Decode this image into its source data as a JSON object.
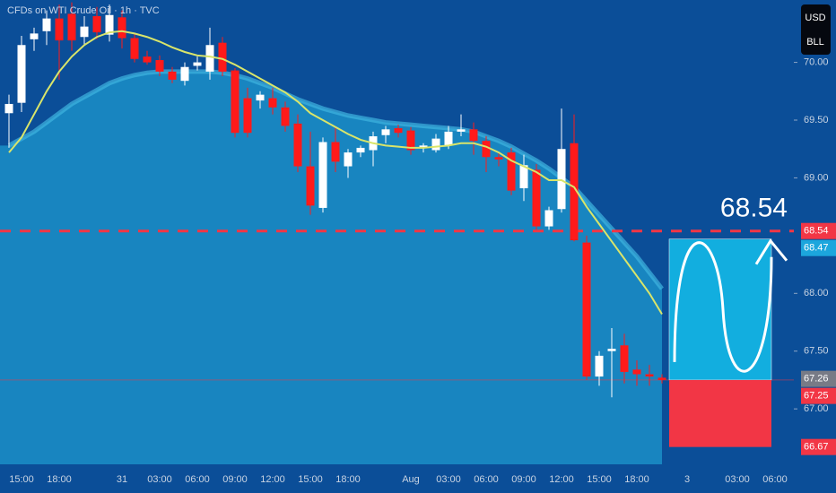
{
  "chart_data": {
    "type": "candlestick",
    "title": "CFDs on WTI Crude Oil · 1h · TVC",
    "currency": [
      "USD",
      "BLL"
    ],
    "categories": [
      null,
      "15:00",
      null,
      null,
      "18:00",
      null,
      null,
      null,
      null,
      "31",
      null,
      null,
      "03:00",
      null,
      null,
      "06:00",
      null,
      null,
      "09:00",
      null,
      null,
      "12:00",
      null,
      null,
      "15:00",
      null,
      null,
      "18:00",
      null,
      null,
      null,
      null,
      "Aug",
      null,
      null,
      "03:00",
      null,
      null,
      "06:00",
      null,
      null,
      "09:00",
      null,
      null,
      "12:00",
      null,
      null,
      "15:00",
      null,
      null,
      "18:00",
      null,
      null,
      null,
      "3",
      null,
      null,
      null,
      "03:00",
      null,
      null,
      "06:00"
    ],
    "open": [
      69.56,
      69.65,
      70.2,
      70.27,
      70.38,
      70.42,
      70.22,
      70.4,
      70.24,
      70.39,
      70.21,
      70.05,
      70.02,
      69.92,
      69.84,
      69.97,
      69.92,
      70.17,
      69.93,
      69.69,
      69.67,
      69.69,
      69.61,
      69.47,
      69.1,
      68.74,
      69.31,
      69.1,
      69.22,
      69.24,
      69.37,
      69.43,
      69.41,
      69.26,
      69.24,
      69.28,
      69.4,
      69.42,
      69.32,
      69.18,
      69.22,
      68.91,
      69.07,
      68.58,
      68.73,
      69.3,
      68.44,
      67.28,
      67.5,
      67.55,
      67.34,
      67.3,
      67.27,
      null,
      null,
      null,
      null,
      null,
      null,
      null,
      null,
      null
    ],
    "high": [
      69.72,
      70.23,
      70.3,
      70.45,
      70.5,
      70.52,
      70.4,
      70.48,
      70.5,
      70.45,
      70.25,
      70.1,
      70.06,
      69.96,
      70.0,
      70.05,
      70.3,
      70.22,
      69.95,
      69.78,
      69.75,
      69.78,
      69.66,
      69.55,
      69.4,
      69.35,
      69.45,
      69.25,
      69.28,
      69.4,
      69.45,
      69.46,
      69.44,
      69.3,
      69.38,
      69.45,
      69.55,
      69.48,
      69.36,
      69.22,
      69.26,
      69.2,
      69.12,
      68.75,
      69.6,
      69.55,
      68.5,
      67.5,
      67.7,
      67.65,
      67.42,
      67.38,
      67.3,
      null,
      null,
      null,
      null,
      null,
      null,
      null,
      null,
      null
    ],
    "low": [
      69.26,
      69.57,
      70.1,
      70.15,
      69.85,
      70.1,
      70.15,
      70.2,
      70.18,
      70.12,
      70.0,
      69.98,
      69.88,
      69.82,
      69.8,
      69.93,
      69.85,
      69.88,
      69.35,
      69.35,
      69.6,
      69.55,
      69.4,
      69.05,
      68.68,
      68.7,
      69.05,
      69.0,
      69.18,
      69.1,
      69.3,
      69.35,
      69.2,
      69.22,
      69.22,
      69.25,
      69.36,
      69.2,
      69.05,
      69.1,
      68.85,
      68.8,
      68.55,
      68.55,
      68.7,
      68.45,
      67.25,
      67.2,
      67.1,
      67.22,
      67.2,
      67.2,
      67.22,
      null,
      null,
      null,
      null,
      null,
      null,
      null,
      null,
      null
    ],
    "close": [
      69.64,
      70.15,
      70.25,
      70.38,
      70.19,
      70.19,
      70.31,
      70.26,
      70.41,
      70.21,
      70.03,
      70.0,
      69.92,
      69.85,
      69.96,
      70.0,
      70.15,
      69.92,
      69.39,
      69.39,
      69.72,
      69.61,
      69.45,
      69.1,
      68.76,
      69.31,
      69.14,
      69.22,
      69.26,
      69.36,
      69.42,
      69.39,
      69.24,
      69.28,
      69.34,
      69.4,
      69.42,
      69.32,
      69.18,
      69.16,
      68.89,
      69.11,
      68.58,
      68.72,
      69.25,
      68.46,
      67.28,
      67.46,
      67.52,
      67.32,
      67.3,
      67.28,
      67.25,
      null,
      null,
      null,
      null,
      null,
      null,
      null,
      null,
      null
    ],
    "up_color": "#ffffff",
    "down_color": "#ff1a1a",
    "ma": {
      "color": "#d9e56a",
      "values": [
        69.22,
        69.35,
        69.55,
        69.75,
        69.92,
        70.05,
        70.15,
        70.22,
        70.26,
        70.27,
        70.25,
        70.22,
        70.18,
        70.13,
        70.09,
        70.06,
        70.05,
        70.03,
        69.98,
        69.92,
        69.86,
        69.8,
        69.74,
        69.66,
        69.56,
        69.5,
        69.44,
        69.38,
        69.33,
        69.3,
        69.28,
        69.27,
        69.26,
        69.26,
        69.27,
        69.28,
        69.3,
        69.3,
        69.27,
        69.22,
        69.15,
        69.1,
        69.05,
        68.98,
        68.98,
        68.92,
        68.75,
        68.6,
        68.45,
        68.3,
        68.15,
        68.0,
        67.82,
        null,
        null,
        null,
        null,
        null,
        null,
        null,
        null,
        null
      ]
    },
    "band": {
      "color": "#1a8cc4",
      "values": [
        69.28,
        69.34,
        69.4,
        69.48,
        69.56,
        69.64,
        69.7,
        69.76,
        69.82,
        69.86,
        69.89,
        69.91,
        69.92,
        69.92,
        69.92,
        69.92,
        69.92,
        69.91,
        69.89,
        69.86,
        69.82,
        69.78,
        69.73,
        69.68,
        69.64,
        69.6,
        69.57,
        69.54,
        69.52,
        69.5,
        69.48,
        69.47,
        69.46,
        69.45,
        69.44,
        69.43,
        69.42,
        69.4,
        69.36,
        69.32,
        69.27,
        69.21,
        69.15,
        69.08,
        69.0,
        68.92,
        68.8,
        68.68,
        68.56,
        68.44,
        68.32,
        68.18,
        68.04,
        null,
        null,
        null,
        null,
        null,
        null,
        null,
        null,
        null
      ]
    },
    "ylim": [
      66.52,
      70.54
    ],
    "yticks": [
      {
        "value": 67,
        "label": "67.00"
      },
      {
        "value": 67.5,
        "label": "67.50"
      },
      {
        "value": 68,
        "label": "68.00"
      },
      {
        "value": 69,
        "label": "69.00"
      },
      {
        "value": 69.5,
        "label": "69.50"
      },
      {
        "value": 70,
        "label": "70.00"
      }
    ],
    "alert_line": {
      "value": 68.54,
      "color": "#f23645"
    },
    "price_labels": [
      {
        "value": 68.54,
        "color": "#f23645"
      },
      {
        "value": 68.47,
        "color": "#1ca6dd"
      },
      {
        "value": 67.26,
        "color": "#787b86"
      },
      {
        "value": 67.25,
        "color": "#f23645"
      },
      {
        "value": 66.67,
        "color": "#f23645"
      }
    ],
    "position": {
      "target": 68.47,
      "entry": 67.25,
      "stop": 66.67,
      "profit_color": "#12aedf",
      "loss_color": "#f23645"
    }
  }
}
